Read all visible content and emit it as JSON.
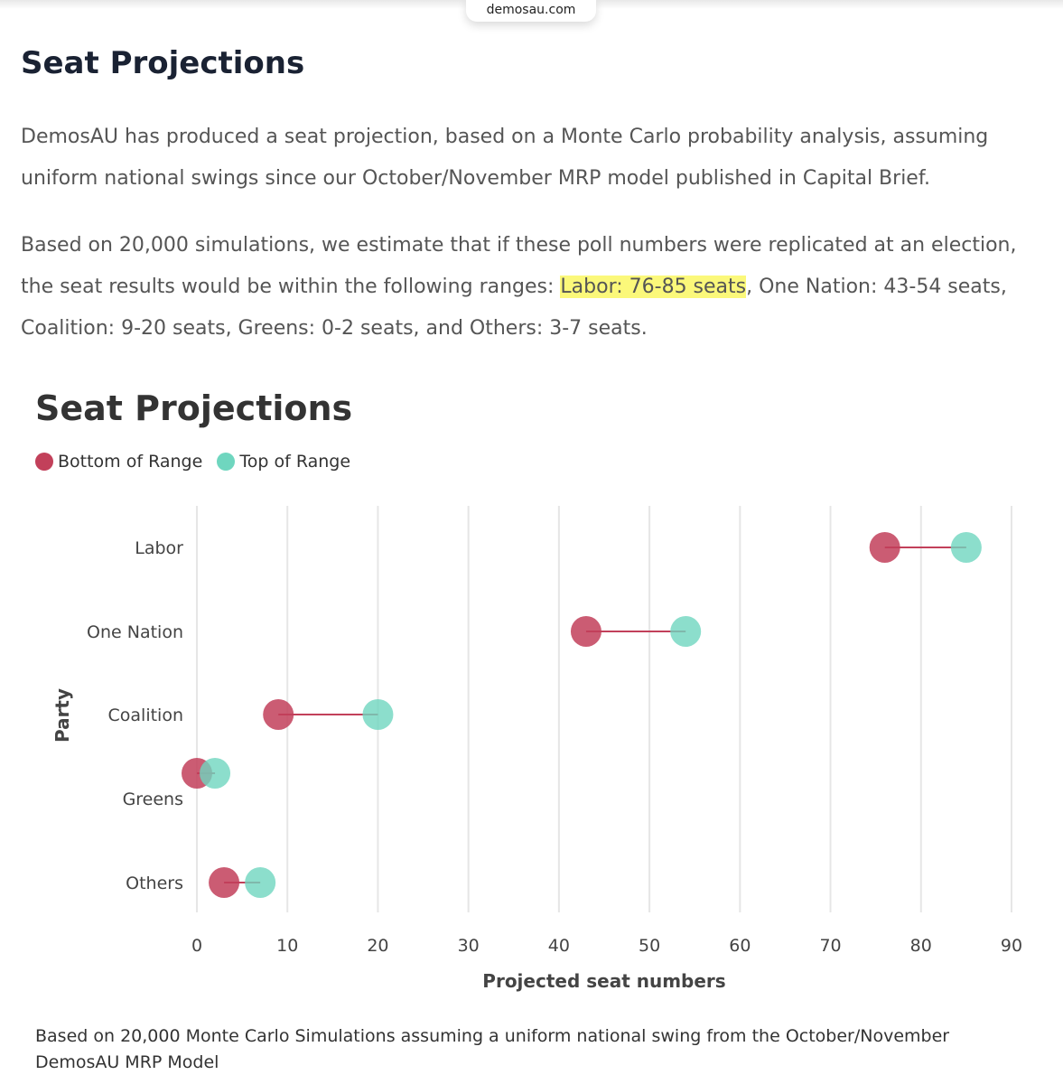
{
  "browser": {
    "url": "demosau.com"
  },
  "article": {
    "title": "Seat Projections",
    "paragraph1": "DemosAU has produced a seat projection, based on a Monte Carlo probability analysis, assuming uniform national swings since our October/November MRP model published in Capital Brief.",
    "paragraph2_before": "Based on 20,000 simulations, we estimate that if these poll numbers were replicated at an election, the seat results would be within the following ranges: ",
    "paragraph2_highlight": "Labor: 76-85 seats",
    "paragraph2_after": ", One Nation: 43-54 seats, Coalition: 9-20 seats, Greens: 0-2 seats, and Others: 3-7 seats.",
    "highlight_color": "#fbf87a"
  },
  "legend": {
    "bottom_label": "Bottom of Range",
    "top_label": "Top of Range"
  },
  "colors": {
    "bottom": "#c2405a",
    "top": "#6fd6bf",
    "connector": "#c2405a",
    "grid": "#e6e6e6"
  },
  "chart_data": {
    "type": "scatter",
    "title": "Seat Projections",
    "xlabel": "Projected seat numbers",
    "ylabel": "Party",
    "xlim": [
      0,
      90
    ],
    "xticks": [
      0,
      10,
      20,
      30,
      40,
      50,
      60,
      70,
      80,
      90
    ],
    "categories": [
      "Labor",
      "One Nation",
      "Coalition",
      "Greens",
      "Others"
    ],
    "series": [
      {
        "name": "Bottom of Range",
        "values": [
          76,
          43,
          9,
          0,
          3
        ]
      },
      {
        "name": "Top of Range",
        "values": [
          85,
          54,
          20,
          2,
          7
        ]
      }
    ],
    "grid": true,
    "legend_position": "top-left"
  },
  "caption": "Based on 20,000 Monte Carlo Simulations assuming a uniform national swing from the October/November DemosAU MRP Model"
}
